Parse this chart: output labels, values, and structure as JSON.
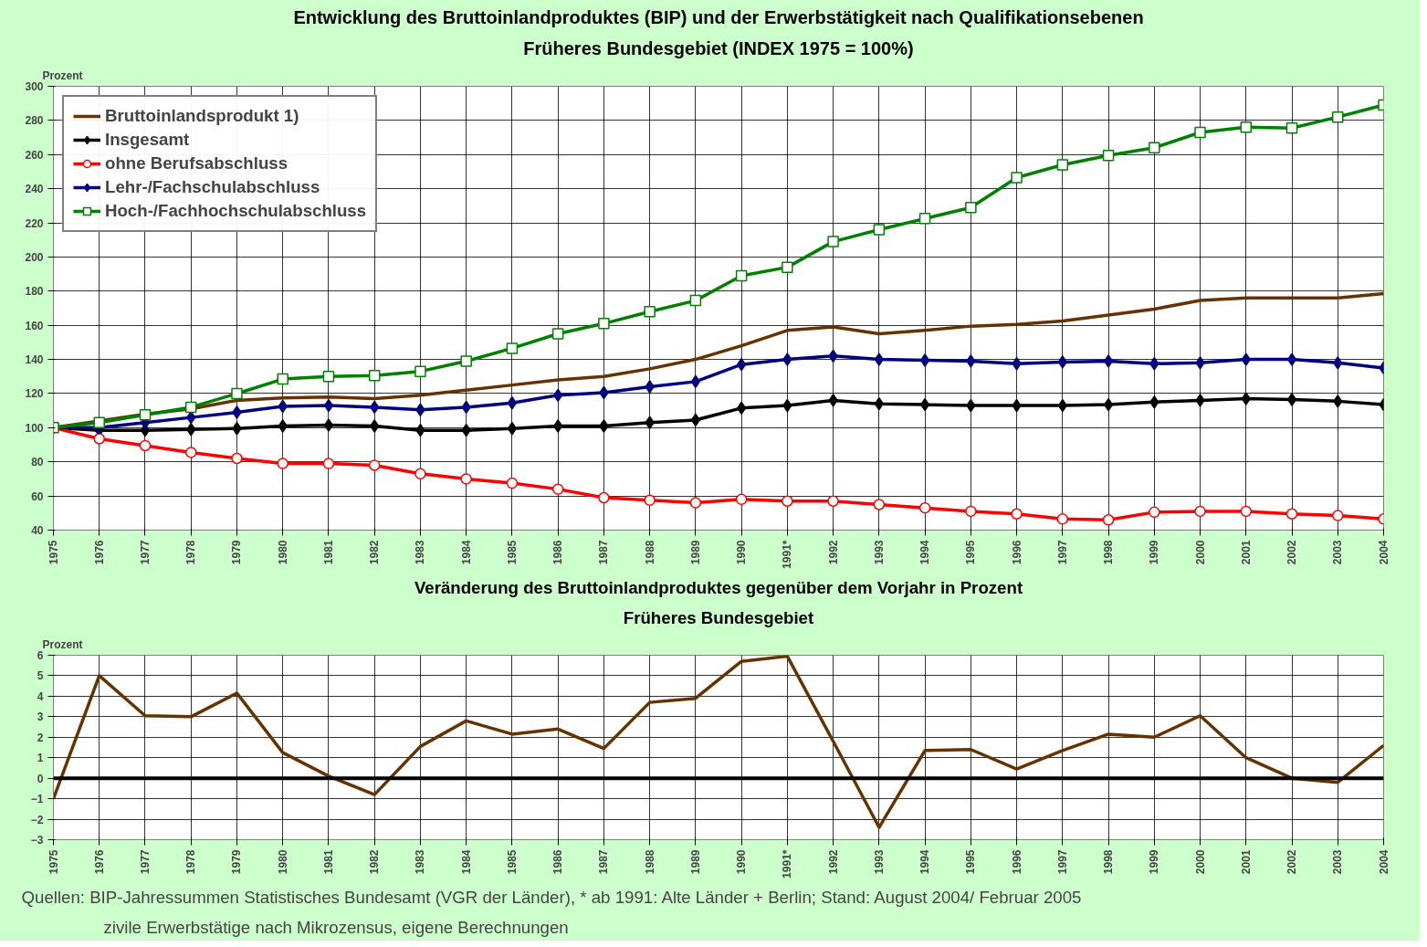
{
  "chart_data": [
    {
      "type": "line",
      "title": "Entwicklung des Bruttoinlandproduktes (BIP) und der Erwerbstätigkeit nach Qualifikationsebenen",
      "subtitle": "Früheres Bundesgebiet (INDEX 1975 = 100%)",
      "ylabel": "Prozent",
      "categories": [
        "1975",
        "1976",
        "1977",
        "1978",
        "1979",
        "1980",
        "1981",
        "1982",
        "1983",
        "1984",
        "1985",
        "1986",
        "1987",
        "1988",
        "1989",
        "1990",
        "1991*",
        "1992",
        "1993",
        "1994",
        "1995",
        "1996",
        "1997",
        "1998",
        "1999",
        "2000",
        "2001",
        "2002",
        "2003",
        "2004"
      ],
      "ylim": [
        40,
        300
      ],
      "yticks": [
        40,
        60,
        80,
        100,
        120,
        140,
        160,
        180,
        200,
        220,
        240,
        260,
        280,
        300
      ],
      "grid": true,
      "legend": "top left",
      "series": [
        {
          "name": "Bruttoinlandsprodukt 1)",
          "color": "#663300",
          "marker": "none",
          "values": [
            100,
            104,
            108,
            111,
            116,
            117.5,
            118,
            117,
            119,
            122,
            125,
            128,
            130,
            134.5,
            140,
            148,
            157,
            159,
            155,
            157,
            159.5,
            160.5,
            162.5,
            166,
            169.5,
            174.5,
            176,
            176,
            176,
            178.5
          ]
        },
        {
          "name": "Insgesamt",
          "color": "#000000",
          "marker": "diamond",
          "values": [
            100,
            98.5,
            98.5,
            99,
            99.5,
            101,
            101.5,
            101,
            98.5,
            98.5,
            99.5,
            101,
            101,
            103,
            104.5,
            111.5,
            113,
            116,
            114,
            113.5,
            113,
            113,
            113,
            113.5,
            115,
            116,
            117,
            116.5,
            115.5,
            113.5
          ]
        },
        {
          "name": "ohne Berufsabschluss",
          "color": "#ff0000",
          "marker": "circle",
          "values": [
            100,
            93.5,
            89.5,
            85.5,
            82,
            79,
            79,
            78,
            73,
            70,
            67.5,
            64,
            59,
            57.5,
            56,
            58,
            57,
            57,
            55,
            53,
            51,
            49.5,
            46.5,
            46,
            50.5,
            51,
            51,
            49.5,
            48.5,
            46.5
          ]
        },
        {
          "name": "Lehr-/Fachschulabschluss",
          "color": "#000080",
          "marker": "diamond",
          "values": [
            100,
            100,
            103,
            106,
            109,
            112.5,
            113,
            112,
            110.5,
            112,
            114.5,
            119,
            120.5,
            124,
            127,
            137,
            140,
            142,
            140,
            139.5,
            139,
            137.5,
            138.5,
            139,
            137.5,
            138,
            140,
            140,
            138,
            135
          ]
        },
        {
          "name": "Hoch-/Fachhochschulabschluss",
          "color": "#008000",
          "marker": "square",
          "values": [
            100,
            103,
            107.5,
            112,
            120,
            128.5,
            130,
            130.5,
            133,
            139,
            146.5,
            155,
            161,
            168,
            174.5,
            189,
            194,
            209,
            216,
            222.5,
            229,
            246.5,
            254,
            259.5,
            264,
            273,
            276,
            275.5,
            282,
            289
          ]
        }
      ]
    },
    {
      "type": "line",
      "title": "Veränderung des Bruttoinlandproduktes gegenüber dem Vorjahr in Prozent",
      "subtitle": "Früheres Bundesgebiet",
      "ylabel": "Prozent",
      "categories": [
        "1975",
        "1976",
        "1977",
        "1978",
        "1979",
        "1980",
        "1981",
        "1982",
        "1983",
        "1984",
        "1985",
        "1986",
        "1987",
        "1988",
        "1989",
        "1990",
        "1991*",
        "1992",
        "1993",
        "1994",
        "1995",
        "1996",
        "1997",
        "1998",
        "1999",
        "2000",
        "2001",
        "2002",
        "2003",
        "2004"
      ],
      "ylim": [
        -3,
        6
      ],
      "yticks": [
        -3,
        -2,
        -1,
        0,
        1,
        2,
        3,
        4,
        5,
        6
      ],
      "grid": true,
      "legend": false,
      "ref_lines": [
        {
          "axis": "y",
          "value": 0,
          "color": "#000000"
        }
      ],
      "series": [
        {
          "color": "#663300",
          "marker": "none",
          "values": [
            -1,
            5,
            3.05,
            3,
            4.15,
            1.25,
            0.1,
            -0.8,
            1.55,
            2.8,
            2.15,
            2.4,
            1.45,
            3.7,
            3.9,
            5.7,
            5.95,
            1.8,
            -2.4,
            1.35,
            1.4,
            0.45,
            1.35,
            2.15,
            2.0,
            3.05,
            1.0,
            0.0,
            -0.2,
            1.6
          ]
        }
      ],
      "annotations": [
        "Quellen: BIP-Jahressummen Statistisches Bundesamt (VGR der Länder), * ab 1991: Alte Länder + Berlin; Stand: August 2004/ Februar 2005",
        "zivile Erwerbstätige nach Mikrozensus, eigene Berechnungen"
      ]
    }
  ]
}
